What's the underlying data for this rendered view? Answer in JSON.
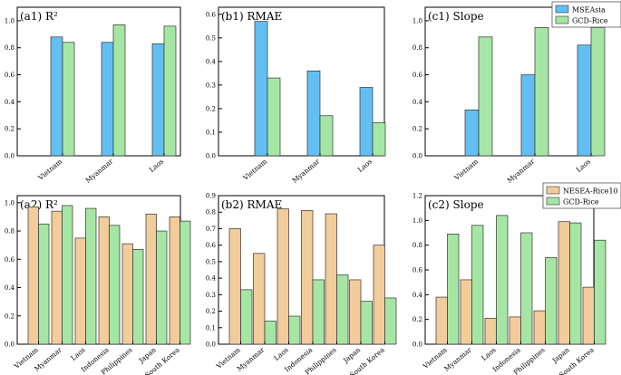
{
  "colors": {
    "MSEAsia": "#63bff2",
    "GCD-Rice": "#a6e6a4",
    "NESEA-Rice10": "#f2cc9b",
    "edge": "#333333",
    "axis": "#000000"
  },
  "legends": [
    {
      "panel_index": 2,
      "entries": [
        "MSEAsia",
        "GCD-Rice"
      ],
      "placement": "top-right"
    },
    {
      "panel_index": 5,
      "entries": [
        "NESEA-Rice10",
        "GCD-Rice"
      ],
      "placement": "top-right"
    }
  ],
  "chart_data": [
    {
      "type": "bar",
      "title": "(a1) R²",
      "ylim": [
        0,
        1.1
      ],
      "yticks": [
        "0.0",
        "0.2",
        "0.4",
        "0.6",
        "0.8",
        "1.0"
      ],
      "categories": [
        "Vietnam",
        "Myanmar",
        "Laos"
      ],
      "series": [
        {
          "name": "MSEAsia",
          "values": [
            0.88,
            0.84,
            0.83
          ]
        },
        {
          "name": "GCD-Rice",
          "values": [
            0.84,
            0.97,
            0.96
          ]
        }
      ]
    },
    {
      "type": "bar",
      "title": "(b1) RMAE",
      "ylim": [
        0,
        0.63
      ],
      "yticks": [
        "0.0",
        "0.1",
        "0.2",
        "0.3",
        "0.4",
        "0.5",
        "0.6"
      ],
      "categories": [
        "Vietnam",
        "Myanmar",
        "Laos"
      ],
      "series": [
        {
          "name": "MSEAsia",
          "values": [
            0.57,
            0.36,
            0.29
          ]
        },
        {
          "name": "GCD-Rice",
          "values": [
            0.33,
            0.17,
            0.14
          ]
        }
      ]
    },
    {
      "type": "bar",
      "title": "(c1) Slope",
      "ylim": [
        0,
        1.1
      ],
      "yticks": [
        "0.0",
        "0.2",
        "0.4",
        "0.6",
        "0.8",
        "1.0"
      ],
      "categories": [
        "Vietnam",
        "Myanmar",
        "Laos"
      ],
      "series": [
        {
          "name": "MSEAsia",
          "values": [
            0.34,
            0.6,
            0.82
          ]
        },
        {
          "name": "GCD-Rice",
          "values": [
            0.88,
            0.95,
            0.95
          ]
        }
      ]
    },
    {
      "type": "bar",
      "title": "(a2) R²",
      "ylim": [
        0,
        1.05
      ],
      "yticks": [
        "0.0",
        "0.2",
        "0.4",
        "0.6",
        "0.8",
        "1.0"
      ],
      "categories": [
        "Vietnam",
        "Myanmar",
        "Laos",
        "Indonesia",
        "Philippines",
        "Japan",
        "South Korea"
      ],
      "series": [
        {
          "name": "NESEA-Rice10",
          "values": [
            0.97,
            0.94,
            0.75,
            0.9,
            0.71,
            0.92,
            0.9
          ]
        },
        {
          "name": "GCD-Rice",
          "values": [
            0.85,
            0.98,
            0.96,
            0.84,
            0.67,
            0.8,
            0.87
          ]
        }
      ]
    },
    {
      "type": "bar",
      "title": "(b2) RMAE",
      "ylim": [
        0,
        0.9
      ],
      "yticks": [
        "0.0",
        "0.1",
        "0.2",
        "0.3",
        "0.4",
        "0.5",
        "0.6",
        "0.7",
        "0.8",
        "0.9"
      ],
      "categories": [
        "Vietnam",
        "Myanmar",
        "Laos",
        "Indonesia",
        "Philippines",
        "Japan",
        "South Korea"
      ],
      "series": [
        {
          "name": "NESEA-Rice10",
          "values": [
            0.7,
            0.55,
            0.82,
            0.81,
            0.79,
            0.39,
            0.6
          ]
        },
        {
          "name": "GCD-Rice",
          "values": [
            0.33,
            0.14,
            0.17,
            0.39,
            0.42,
            0.26,
            0.28
          ]
        }
      ]
    },
    {
      "type": "bar",
      "title": "(c2) Slope",
      "ylim": [
        0,
        1.2
      ],
      "yticks": [
        "0.0",
        "0.2",
        "0.4",
        "0.6",
        "0.8",
        "1.0",
        "1.2"
      ],
      "categories": [
        "Vietnam",
        "Myanmar",
        "Laos",
        "Indonesia",
        "Philippines",
        "Japan",
        "South Korea"
      ],
      "series": [
        {
          "name": "NESEA-Rice10",
          "values": [
            0.38,
            0.52,
            0.21,
            0.22,
            0.27,
            0.99,
            0.46
          ]
        },
        {
          "name": "GCD-Rice",
          "values": [
            0.89,
            0.96,
            1.04,
            0.9,
            0.7,
            0.98,
            0.84
          ]
        }
      ]
    }
  ]
}
